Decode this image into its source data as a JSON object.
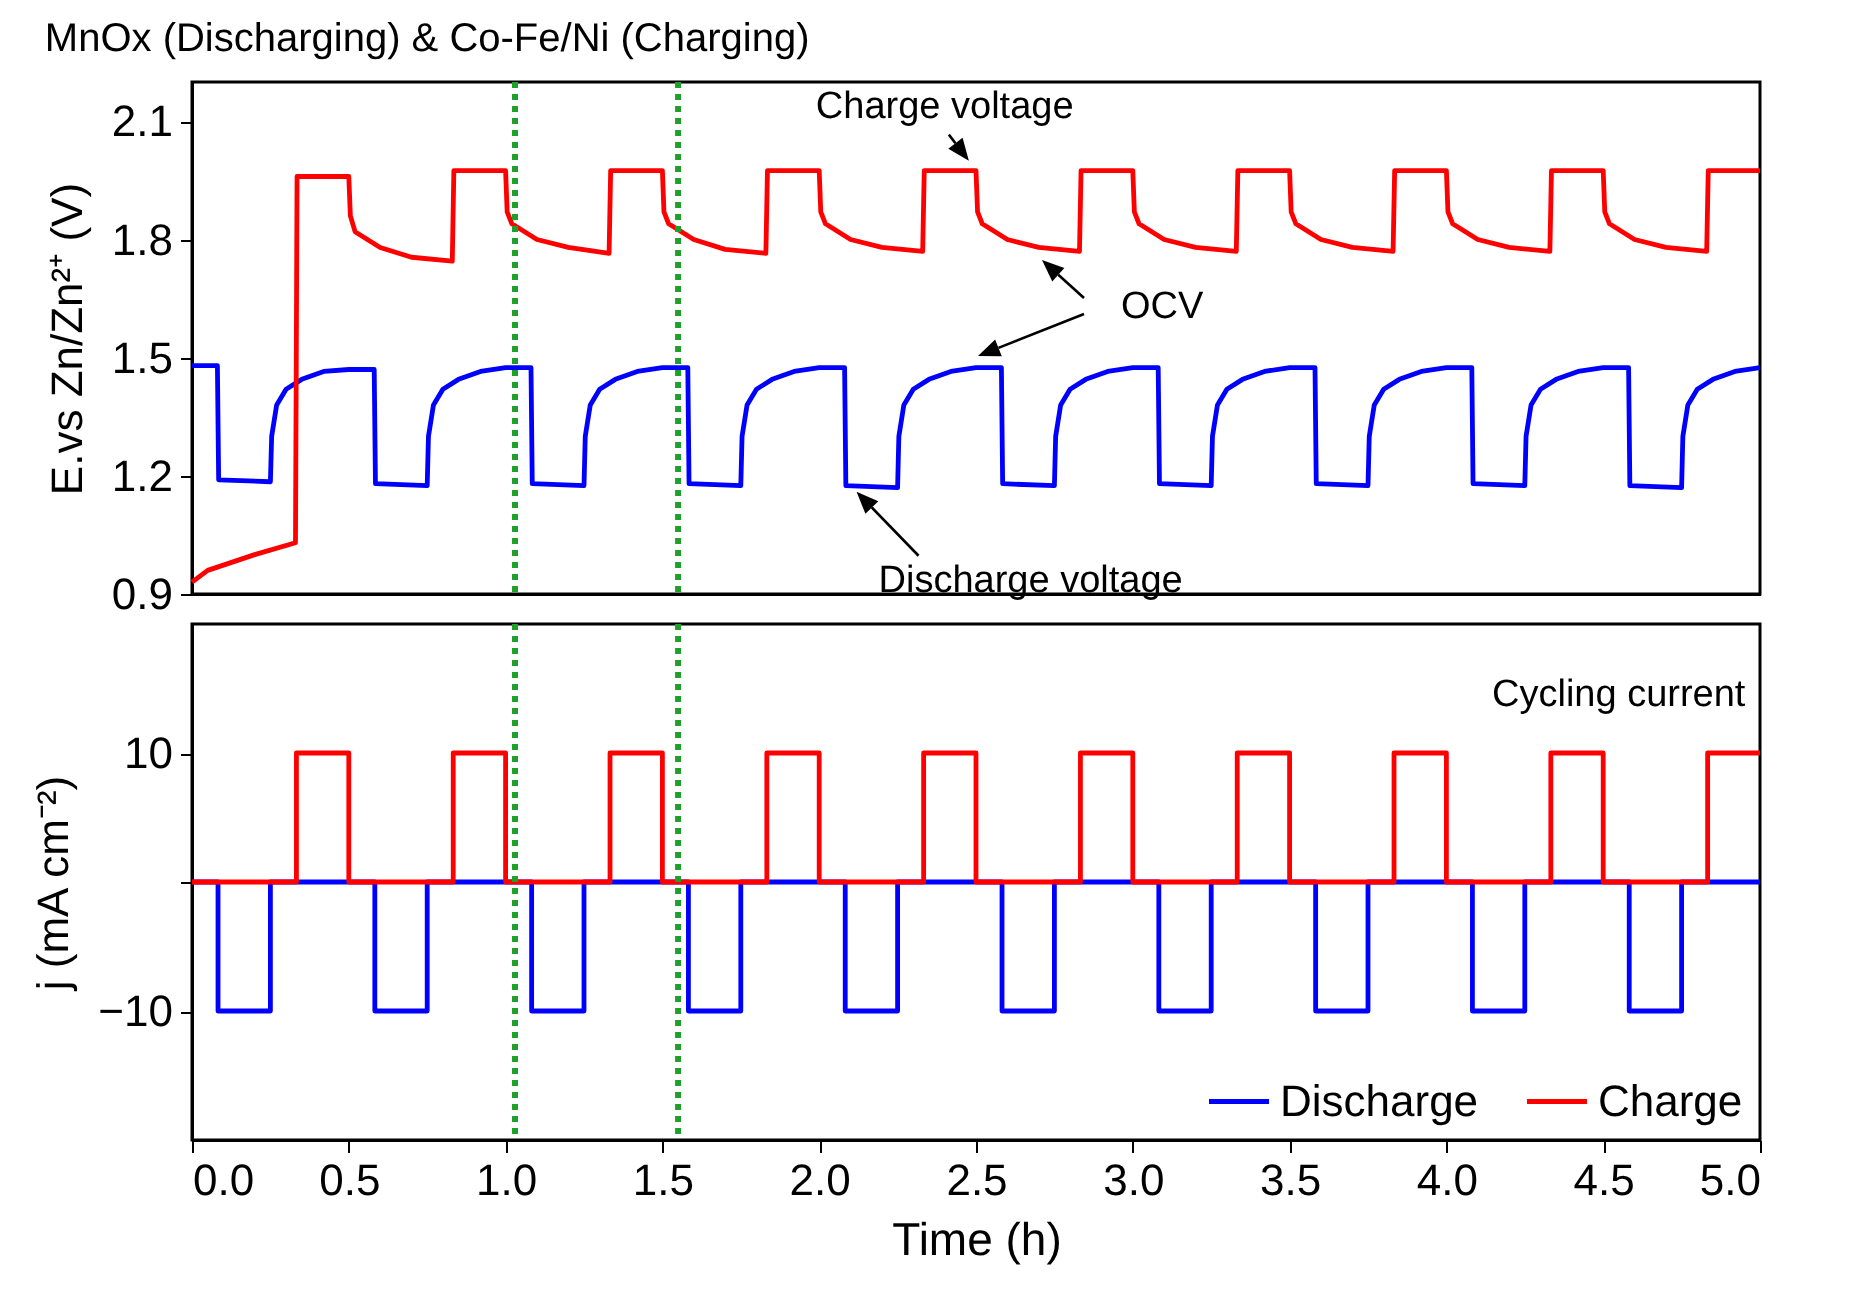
{
  "chart_data": [
    {
      "type": "line",
      "title": "MnOx (Discharging) & Co-Fe/Ni (Charging)",
      "ylabel": "E.vs Zn/Zn²⁺ (V)",
      "xlim": [
        0,
        5
      ],
      "ylim": [
        0.9,
        2.2
      ],
      "yticks": [
        0.9,
        1.2,
        1.5,
        1.8,
        2.1
      ],
      "tick_labels": "y",
      "annotations": [
        {
          "text": "Charge voltage",
          "x": 2.49,
          "y": 1.98
        },
        "OCV",
        {
          "text": "Discharge voltage",
          "x": 2.1,
          "y": 1.18
        }
      ],
      "ref_lines": [
        {
          "axis": "x",
          "value": 1.03,
          "color": "#1fa02a",
          "line_style": "dotted"
        },
        {
          "axis": "x",
          "value": 1.55,
          "color": "#1fa02a",
          "line_style": "dotted"
        }
      ],
      "series": [
        {
          "color": "#0000ff",
          "x": [
            0,
            0.081,
            0.085,
            0.25,
            0.254,
            0.27,
            0.3,
            0.35,
            0.42,
            0.5,
            0.581,
            0.585,
            0.75,
            0.754,
            0.77,
            0.8,
            0.85,
            0.92,
            1.0,
            1.081,
            1.085,
            1.25,
            1.254,
            1.27,
            1.3,
            1.35,
            1.42,
            1.5,
            1.581,
            1.585,
            1.75,
            1.754,
            1.77,
            1.8,
            1.85,
            1.92,
            2.0,
            2.081,
            2.085,
            2.25,
            2.254,
            2.27,
            2.3,
            2.35,
            2.42,
            2.5,
            2.581,
            2.585,
            2.75,
            2.754,
            2.77,
            2.8,
            2.85,
            2.92,
            3.0,
            3.081,
            3.085,
            3.25,
            3.254,
            3.27,
            3.3,
            3.35,
            3.42,
            3.5,
            3.581,
            3.585,
            3.75,
            3.754,
            3.77,
            3.8,
            3.85,
            3.92,
            4.0,
            4.081,
            4.085,
            4.25,
            4.254,
            4.27,
            4.3,
            4.35,
            4.42,
            4.5,
            4.581,
            4.585,
            4.75,
            4.754,
            4.77,
            4.8,
            4.85,
            4.92,
            5.0
          ],
          "values": [
            1.48,
            1.48,
            1.19,
            1.185,
            1.3,
            1.38,
            1.42,
            1.445,
            1.465,
            1.47,
            1.47,
            1.18,
            1.175,
            1.3,
            1.38,
            1.42,
            1.445,
            1.465,
            1.475,
            1.475,
            1.18,
            1.175,
            1.3,
            1.38,
            1.42,
            1.445,
            1.465,
            1.475,
            1.475,
            1.18,
            1.175,
            1.3,
            1.38,
            1.42,
            1.445,
            1.465,
            1.475,
            1.475,
            1.175,
            1.17,
            1.3,
            1.38,
            1.42,
            1.445,
            1.465,
            1.475,
            1.475,
            1.18,
            1.175,
            1.3,
            1.38,
            1.42,
            1.445,
            1.465,
            1.475,
            1.475,
            1.18,
            1.175,
            1.3,
            1.38,
            1.42,
            1.445,
            1.465,
            1.475,
            1.475,
            1.18,
            1.175,
            1.3,
            1.38,
            1.42,
            1.445,
            1.465,
            1.475,
            1.475,
            1.18,
            1.175,
            1.3,
            1.38,
            1.42,
            1.445,
            1.465,
            1.475,
            1.475,
            1.175,
            1.17,
            1.3,
            1.38,
            1.42,
            1.445,
            1.465,
            1.475
          ]
        },
        {
          "color": "#ff0000",
          "x": [
            0,
            0.05,
            0.2,
            0.33,
            0.335,
            0.5,
            0.505,
            0.52,
            0.6,
            0.7,
            0.83,
            0.835,
            1.0,
            1.005,
            1.02,
            1.1,
            1.2,
            1.33,
            1.335,
            1.5,
            1.505,
            1.52,
            1.6,
            1.7,
            1.83,
            1.835,
            2.0,
            2.005,
            2.02,
            2.1,
            2.2,
            2.33,
            2.335,
            2.5,
            2.505,
            2.52,
            2.6,
            2.7,
            2.83,
            2.835,
            3.0,
            3.005,
            3.02,
            3.1,
            3.2,
            3.33,
            3.335,
            3.5,
            3.505,
            3.52,
            3.6,
            3.7,
            3.83,
            3.835,
            4.0,
            4.005,
            4.02,
            4.1,
            4.2,
            4.33,
            4.335,
            4.5,
            4.505,
            4.52,
            4.6,
            4.7,
            4.83,
            4.835,
            5.0
          ],
          "values": [
            0.93,
            0.96,
            1.0,
            1.03,
            1.96,
            1.96,
            1.86,
            1.82,
            1.78,
            1.755,
            1.745,
            1.975,
            1.975,
            1.87,
            1.84,
            1.8,
            1.78,
            1.765,
            1.975,
            1.975,
            1.87,
            1.84,
            1.8,
            1.775,
            1.765,
            1.975,
            1.975,
            1.87,
            1.84,
            1.8,
            1.78,
            1.77,
            1.975,
            1.975,
            1.87,
            1.84,
            1.8,
            1.78,
            1.77,
            1.975,
            1.975,
            1.87,
            1.84,
            1.8,
            1.78,
            1.77,
            1.975,
            1.975,
            1.87,
            1.84,
            1.8,
            1.78,
            1.77,
            1.975,
            1.975,
            1.87,
            1.84,
            1.8,
            1.78,
            1.77,
            1.975,
            1.975,
            1.87,
            1.84,
            1.8,
            1.78,
            1.77,
            1.975,
            1.975
          ]
        }
      ]
    },
    {
      "type": "line",
      "xlabel": "Time (h)",
      "ylabel": "j (mA cm⁻²)",
      "xlim": [
        0,
        5
      ],
      "ylim": [
        -20,
        20
      ],
      "xticks": [
        {
          "value": 0,
          "label": "0.0"
        },
        0.5,
        {
          "value": 1,
          "label": "1.0"
        },
        1.5,
        {
          "value": 2,
          "label": "2.0"
        },
        2.5,
        {
          "value": 3,
          "label": "3.0"
        },
        3.5,
        {
          "value": 4,
          "label": "4.0"
        },
        4.5,
        {
          "value": 5,
          "label": "5.0"
        }
      ],
      "yticks": [
        -10,
        {
          "value": 0,
          "label": null
        },
        10
      ],
      "legend": "bottom right",
      "annotations": [
        "Cycling current"
      ],
      "ref_lines": [
        {
          "axis": "x",
          "value": 1.03,
          "color": "#1fa02a",
          "line_style": "dotted"
        },
        {
          "axis": "x",
          "value": 1.55,
          "color": "#1fa02a",
          "line_style": "dotted"
        }
      ],
      "series": [
        {
          "name": "Discharge",
          "color": "#0000ff",
          "x": [
            0,
            0.083,
            0.083,
            0.25,
            0.25,
            0.583,
            0.583,
            0.75,
            0.75,
            1.083,
            1.083,
            1.25,
            1.25,
            1.583,
            1.583,
            1.75,
            1.75,
            2.083,
            2.083,
            2.25,
            2.25,
            2.583,
            2.583,
            2.75,
            2.75,
            3.083,
            3.083,
            3.25,
            3.25,
            3.583,
            3.583,
            3.75,
            3.75,
            4.083,
            4.083,
            4.25,
            4.25,
            4.583,
            4.583,
            4.75,
            4.75,
            5.0
          ],
          "values": [
            0,
            0,
            -10,
            -10,
            0,
            0,
            -10,
            -10,
            0,
            0,
            -10,
            -10,
            0,
            0,
            -10,
            -10,
            0,
            0,
            -10,
            -10,
            0,
            0,
            -10,
            -10,
            0,
            0,
            -10,
            -10,
            0,
            0,
            -10,
            -10,
            0,
            0,
            -10,
            -10,
            0,
            0,
            -10,
            -10,
            0,
            0
          ]
        },
        {
          "name": "Charge",
          "color": "#ff0000",
          "x": [
            0,
            0.333,
            0.333,
            0.5,
            0.5,
            0.833,
            0.833,
            1.0,
            1.0,
            1.333,
            1.333,
            1.5,
            1.5,
            1.833,
            1.833,
            2.0,
            2.0,
            2.333,
            2.333,
            2.5,
            2.5,
            2.833,
            2.833,
            3.0,
            3.0,
            3.333,
            3.333,
            3.5,
            3.5,
            3.833,
            3.833,
            4.0,
            4.0,
            4.333,
            4.333,
            4.5,
            4.5,
            4.833,
            4.833,
            5.0
          ],
          "values": [
            0,
            0,
            10,
            10,
            0,
            0,
            10,
            10,
            0,
            0,
            10,
            10,
            0,
            0,
            10,
            10,
            0,
            0,
            10,
            10,
            0,
            0,
            10,
            10,
            0,
            0,
            10,
            10,
            0,
            0,
            10,
            10,
            0,
            0,
            10,
            10,
            0,
            0,
            10,
            10
          ]
        }
      ]
    }
  ]
}
